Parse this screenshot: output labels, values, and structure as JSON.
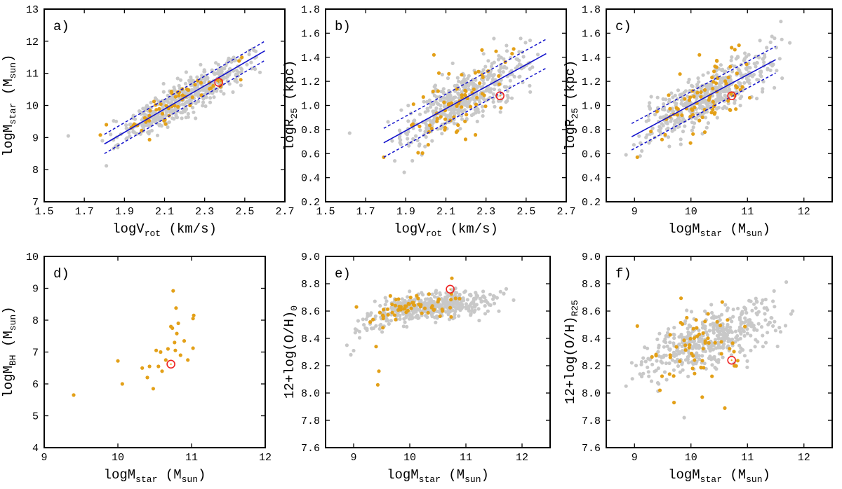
{
  "colors": {
    "gray": "#c8c8c8",
    "orange": "#e3a018",
    "fit": "#1111cc",
    "highlight": "#ee2222",
    "frame": "#000000"
  },
  "chart_data": [
    {
      "type": "scatter",
      "panel_label": "a)",
      "xlabel": {
        "main": "logV",
        "sub": "rot",
        "unit": "(km/s)"
      },
      "ylabel": {
        "main": "logM",
        "sub": "star",
        "unit": "(M",
        "unit_sub": "sun",
        "unit_close": ")"
      },
      "xlim": [
        1.5,
        2.7
      ],
      "ylim": [
        7,
        13
      ],
      "xticks": [
        "1.5",
        "1.7",
        "1.9",
        "2.1",
        "2.3",
        "2.5",
        "2.7"
      ],
      "yticks": [
        "7",
        "8",
        "9",
        "10",
        "11",
        "12",
        "13"
      ],
      "fit": {
        "x": [
          1.8,
          2.6
        ],
        "y": [
          8.8,
          11.7
        ],
        "band": 0.3
      },
      "gray": {
        "n": 480,
        "seed": 11,
        "x_range": [
          1.82,
          2.58
        ],
        "y_mode": "linear",
        "slope": 3.62,
        "intercept": 2.28,
        "scatter": 0.28,
        "extra": [
          [
            1.62,
            9.05
          ],
          [
            1.81,
            8.12
          ],
          [
            1.79,
            8.9
          ]
        ]
      },
      "orange": {
        "n": 55,
        "seed": 12,
        "x_range": [
          1.85,
          2.5
        ],
        "y_mode": "linear",
        "slope": 3.62,
        "intercept": 2.28,
        "scatter": 0.22,
        "extra": [
          [
            1.78,
            9.08
          ],
          [
            1.81,
            9.4
          ],
          [
            2.48,
            10.8
          ]
        ]
      },
      "highlight": {
        "x": 2.37,
        "y": 10.72
      }
    },
    {
      "type": "scatter",
      "panel_label": "b)",
      "xlabel": {
        "main": "logV",
        "sub": "rot",
        "unit": "(km/s)"
      },
      "ylabel": {
        "main": "logR",
        "sub": "25",
        "unit": "(kpc)",
        "unit_sub": "",
        "unit_close": ""
      },
      "xlim": [
        1.5,
        2.7
      ],
      "ylim": [
        0.2,
        1.8
      ],
      "xticks": [
        "1.5",
        "1.7",
        "1.9",
        "2.1",
        "2.3",
        "2.5",
        "2.7"
      ],
      "yticks": [
        "0.2",
        "0.4",
        "0.6",
        "0.8",
        "1.0",
        "1.2",
        "1.4",
        "1.6",
        "1.8"
      ],
      "fit": {
        "x": [
          1.79,
          2.6
        ],
        "y": [
          0.69,
          1.43
        ],
        "band": 0.12
      },
      "gray": {
        "n": 460,
        "seed": 21,
        "x_range": [
          1.8,
          2.58
        ],
        "y_mode": "linear",
        "slope": 0.914,
        "intercept": -0.946,
        "scatter": 0.11,
        "extra": [
          [
            1.62,
            0.77
          ],
          [
            1.98,
            0.59
          ],
          [
            2.52,
            1.54
          ]
        ]
      },
      "orange": {
        "n": 70,
        "seed": 22,
        "x_range": [
          1.9,
          2.5
        ],
        "y_mode": "linear",
        "slope": 0.914,
        "intercept": -0.946,
        "scatter": 0.13,
        "extra": [
          [
            1.79,
            0.57
          ],
          [
            2.04,
            1.42
          ],
          [
            2.35,
            1.45
          ],
          [
            2.28,
            1.46
          ],
          [
            2.43,
            1.43
          ]
        ]
      },
      "highlight": {
        "x": 2.37,
        "y": 1.08
      }
    },
    {
      "type": "scatter",
      "panel_label": "c)",
      "xlabel": {
        "main": "logM",
        "sub": "star",
        "unit": "(M",
        "unit_sub": "sun",
        "unit_close": ")"
      },
      "ylabel": {
        "main": "logR",
        "sub": "25",
        "unit": "(kpc)",
        "unit_sub": "",
        "unit_close": ""
      },
      "xlim": [
        8.5,
        12.5
      ],
      "ylim": [
        0.2,
        1.8
      ],
      "xticks": [
        "9",
        "10",
        "11",
        "12"
      ],
      "yticks": [
        "0.2",
        "0.4",
        "0.6",
        "0.8",
        "1.0",
        "1.2",
        "1.4",
        "1.6",
        "1.8"
      ],
      "fit": {
        "x": [
          8.95,
          11.5
        ],
        "y": [
          0.74,
          1.38
        ],
        "band": 0.11
      },
      "gray": {
        "n": 460,
        "seed": 31,
        "x_range": [
          8.95,
          11.7
        ],
        "y_mode": "linear",
        "slope": 0.251,
        "intercept": -1.506,
        "scatter": 0.1,
        "extra": [
          [
            8.85,
            0.59
          ],
          [
            11.75,
            1.52
          ],
          [
            9.1,
            0.58
          ]
        ]
      },
      "orange": {
        "n": 75,
        "seed": 32,
        "x_range": [
          9.2,
          11.2
        ],
        "y_mode": "linear",
        "slope": 0.251,
        "intercept": -1.506,
        "scatter": 0.13,
        "extra": [
          [
            9.05,
            0.57
          ],
          [
            10.15,
            1.42
          ],
          [
            10.85,
            1.5
          ],
          [
            10.72,
            1.48
          ]
        ]
      },
      "highlight": {
        "x": 10.72,
        "y": 1.08
      }
    },
    {
      "type": "scatter",
      "panel_label": "d)",
      "xlabel": {
        "main": "logM",
        "sub": "star",
        "unit": "(M",
        "unit_sub": "sun",
        "unit_close": ")"
      },
      "ylabel": {
        "main": "logM",
        "sub": "BH",
        "unit": "(M",
        "unit_sub": "sun",
        "unit_close": ")"
      },
      "xlim": [
        9,
        12
      ],
      "ylim": [
        4,
        10
      ],
      "xticks": [
        "9",
        "10",
        "11",
        "12"
      ],
      "yticks": [
        "4",
        "5",
        "6",
        "7",
        "8",
        "9",
        "10"
      ],
      "points": {
        "orange": [
          [
            9.4,
            5.65
          ],
          [
            10.0,
            6.72
          ],
          [
            10.06,
            6.0
          ],
          [
            10.33,
            6.5
          ],
          [
            10.4,
            6.2
          ],
          [
            10.43,
            6.55
          ],
          [
            10.48,
            5.85
          ],
          [
            10.52,
            7.05
          ],
          [
            10.55,
            6.55
          ],
          [
            10.58,
            7.0
          ],
          [
            10.6,
            6.4
          ],
          [
            10.65,
            6.75
          ],
          [
            10.68,
            7.1
          ],
          [
            10.72,
            7.8
          ],
          [
            10.74,
            7.75
          ],
          [
            10.75,
            8.92
          ],
          [
            10.77,
            7.3
          ],
          [
            10.78,
            7.05
          ],
          [
            10.79,
            8.38
          ],
          [
            10.8,
            7.58
          ],
          [
            10.82,
            7.9
          ],
          [
            10.85,
            6.9
          ],
          [
            10.9,
            7.35
          ],
          [
            10.95,
            6.75
          ],
          [
            11.02,
            8.05
          ],
          [
            11.03,
            8.15
          ],
          [
            11.02,
            7.12
          ]
        ]
      },
      "highlight": {
        "x": 10.72,
        "y": 6.62
      }
    },
    {
      "type": "scatter",
      "panel_label": "e)",
      "xlabel": {
        "main": "logM",
        "sub": "star",
        "unit": "(M",
        "unit_sub": "sun",
        "unit_close": ")"
      },
      "ylabel": {
        "main": "12+log(O/H)",
        "sub": "0",
        "unit": "",
        "unit_sub": "",
        "unit_close": ""
      },
      "xlim": [
        8.5,
        12.5
      ],
      "ylim": [
        7.6,
        9.0
      ],
      "xticks": [
        "9",
        "10",
        "11",
        "12"
      ],
      "yticks": [
        "7.6",
        "7.8",
        "8.0",
        "8.2",
        "8.4",
        "8.6",
        "8.8",
        "9.0"
      ],
      "gray": {
        "n": 430,
        "seed": 51,
        "x_range": [
          8.9,
          11.8
        ],
        "y_mode": "sat",
        "sat_top": 8.67,
        "sat_a": 0.2,
        "sat_x0": 9.0,
        "sat_k": 1.25,
        "scatter": 0.05,
        "extra": [
          [
            8.88,
            8.35
          ],
          [
            8.95,
            8.28
          ],
          [
            9.0,
            8.31
          ],
          [
            11.85,
            8.68
          ]
        ]
      },
      "orange": {
        "n": 62,
        "seed": 52,
        "x_range": [
          9.2,
          11.0
        ],
        "y_mode": "sat",
        "sat_top": 8.68,
        "sat_a": 0.2,
        "sat_x0": 9.0,
        "sat_k": 1.25,
        "scatter": 0.05,
        "extra": [
          [
            9.43,
            8.06
          ],
          [
            9.45,
            8.16
          ],
          [
            9.4,
            8.34
          ],
          [
            9.05,
            8.63
          ],
          [
            10.75,
            8.84
          ]
        ]
      },
      "highlight": {
        "x": 10.72,
        "y": 8.76
      }
    },
    {
      "type": "scatter",
      "panel_label": "f)",
      "xlabel": {
        "main": "logM",
        "sub": "star",
        "unit": "(M",
        "unit_sub": "sun",
        "unit_close": ")"
      },
      "ylabel": {
        "main": "12+log(O/H)",
        "sub": "R25",
        "unit": "",
        "unit_sub": "",
        "unit_close": ""
      },
      "xlim": [
        8.5,
        12.5
      ],
      "ylim": [
        7.6,
        9.0
      ],
      "xticks": [
        "9",
        "10",
        "11",
        "12"
      ],
      "yticks": [
        "7.6",
        "7.8",
        "8.0",
        "8.2",
        "8.4",
        "8.6",
        "8.8",
        "9.0"
      ],
      "gray": {
        "n": 440,
        "seed": 61,
        "x_range": [
          8.85,
          11.8
        ],
        "y_mode": "linear",
        "slope": 0.135,
        "intercept": 7.0,
        "scatter": 0.1,
        "extra": [
          [
            9.88,
            7.82
          ],
          [
            8.85,
            8.05
          ],
          [
            11.8,
            8.6
          ]
        ]
      },
      "orange": {
        "n": 58,
        "seed": 62,
        "x_range": [
          9.2,
          11.1
        ],
        "y_mode": "linear",
        "slope": 0.135,
        "intercept": 7.0,
        "scatter": 0.12,
        "extra": [
          [
            9.05,
            8.49
          ],
          [
            10.6,
            7.89
          ],
          [
            10.2,
            7.97
          ],
          [
            9.7,
            7.93
          ],
          [
            9.45,
            8.02
          ]
        ]
      },
      "highlight": {
        "x": 10.72,
        "y": 8.24
      }
    }
  ]
}
